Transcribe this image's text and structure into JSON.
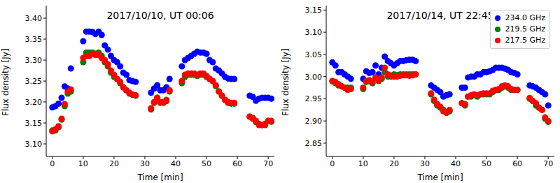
{
  "chart_data": [
    {
      "type": "scatter",
      "title": "2017/10/10, UT 00:06",
      "xlabel": "Time [min]",
      "ylabel": "Flux density [Jy]",
      "marker": "circle",
      "grid": false,
      "xlim": [
        -2,
        72
      ],
      "xticks": [
        0,
        10,
        20,
        30,
        40,
        50,
        60,
        70
      ],
      "ylim": [
        3.07,
        3.43
      ],
      "yticks": [
        {
          "value": 3.1,
          "label": "3.10"
        },
        {
          "value": 3.15,
          "label": "3.15"
        },
        {
          "value": 3.2,
          "label": "3.20"
        },
        {
          "value": 3.25,
          "label": "3.25"
        },
        {
          "value": 3.3,
          "label": "3.30"
        },
        {
          "value": 3.35,
          "label": "3.35"
        },
        {
          "value": 3.4,
          "label": "3.40"
        }
      ],
      "x": [
        0,
        1,
        2,
        3,
        4,
        5,
        6,
        10,
        11,
        12,
        13,
        14,
        15,
        16,
        17,
        18,
        19,
        20,
        21,
        22,
        23,
        24,
        25,
        26,
        27,
        32,
        33,
        34,
        35,
        36,
        37,
        38,
        42,
        43,
        44,
        45,
        46,
        47,
        48,
        49,
        50,
        51,
        52,
        53,
        54,
        55,
        56,
        57,
        58,
        59,
        64,
        65,
        66,
        67,
        68,
        69,
        70,
        71
      ],
      "series": [
        {
          "color": "#0000ff",
          "values": [
            3.187,
            3.19,
            3.196,
            3.21,
            3.237,
            3.232,
            3.28,
            3.345,
            3.368,
            3.368,
            3.367,
            3.362,
            3.368,
            3.36,
            3.335,
            3.325,
            3.31,
            3.3,
            3.295,
            3.285,
            3.27,
            3.265,
            3.252,
            3.25,
            3.248,
            3.222,
            3.232,
            3.24,
            3.228,
            3.228,
            3.235,
            3.255,
            3.285,
            3.3,
            3.305,
            3.31,
            3.315,
            3.32,
            3.318,
            3.318,
            3.315,
            3.3,
            3.295,
            3.28,
            3.275,
            3.268,
            3.26,
            3.256,
            3.255,
            3.255,
            3.215,
            3.212,
            3.203,
            3.208,
            3.21,
            3.21,
            3.21,
            3.208
          ]
        },
        {
          "color": "#008000",
          "values": [
            3.132,
            3.132,
            3.14,
            3.158,
            3.19,
            3.22,
            3.225,
            3.295,
            3.318,
            3.318,
            3.318,
            3.315,
            3.318,
            3.31,
            3.295,
            3.285,
            3.27,
            3.26,
            3.255,
            3.245,
            3.235,
            3.228,
            3.22,
            3.217,
            3.215,
            3.182,
            3.198,
            3.21,
            3.198,
            3.198,
            3.202,
            3.225,
            3.245,
            3.26,
            3.265,
            3.265,
            3.265,
            3.262,
            3.265,
            3.265,
            3.26,
            3.255,
            3.25,
            3.238,
            3.225,
            3.215,
            3.205,
            3.198,
            3.196,
            3.196,
            3.165,
            3.162,
            3.152,
            3.148,
            3.145,
            3.148,
            3.155,
            3.153
          ]
        },
        {
          "color": "#ff0000",
          "values": [
            3.13,
            3.135,
            3.142,
            3.16,
            3.195,
            3.225,
            3.23,
            3.305,
            3.31,
            3.31,
            3.315,
            3.312,
            3.312,
            3.305,
            3.3,
            3.29,
            3.275,
            3.265,
            3.255,
            3.248,
            3.235,
            3.228,
            3.222,
            3.218,
            3.216,
            3.185,
            3.2,
            3.21,
            3.2,
            3.2,
            3.205,
            3.228,
            3.25,
            3.265,
            3.268,
            3.268,
            3.268,
            3.265,
            3.268,
            3.268,
            3.262,
            3.255,
            3.25,
            3.24,
            3.225,
            3.215,
            3.205,
            3.2,
            3.198,
            3.198,
            3.165,
            3.16,
            3.155,
            3.145,
            3.145,
            3.145,
            3.155,
            3.155
          ]
        }
      ]
    },
    {
      "type": "scatter",
      "title": "2017/10/14, UT 22:45",
      "xlabel": "Time [min]",
      "ylabel": "Flux density [Jy]",
      "marker": "circle",
      "grid": false,
      "legend": "upper right",
      "xlim": [
        -2,
        72
      ],
      "xticks": [
        0,
        10,
        20,
        30,
        40,
        50,
        60,
        70
      ],
      "ylim": [
        2.82,
        3.16
      ],
      "yticks": [
        {
          "value": 2.85,
          "label": "2.85"
        },
        {
          "value": 2.9,
          "label": "2.90"
        },
        {
          "value": 2.95,
          "label": "2.95"
        },
        {
          "value": 3.0,
          "label": "3.00"
        },
        {
          "value": 3.05,
          "label": "3.05"
        },
        {
          "value": 3.1,
          "label": "3.10"
        },
        {
          "value": 3.15,
          "label": "3.15"
        }
      ],
      "x": [
        0,
        1,
        2,
        3,
        4,
        5,
        6,
        10,
        11,
        12,
        13,
        14,
        15,
        16,
        17,
        18,
        19,
        20,
        21,
        22,
        23,
        24,
        25,
        26,
        27,
        32,
        33,
        34,
        35,
        36,
        37,
        38,
        42,
        43,
        44,
        45,
        46,
        47,
        48,
        49,
        50,
        51,
        52,
        53,
        54,
        55,
        56,
        57,
        58,
        59,
        60,
        64,
        65,
        66,
        67,
        68,
        69,
        70
      ],
      "series": [
        {
          "name": "234.0 GHz",
          "color": "#0000ff",
          "values": [
            3.032,
            3.025,
            3.01,
            3.01,
            3.005,
            3.0,
            2.995,
            2.995,
            3.012,
            3.008,
            3.01,
            3.025,
            3.005,
            3.02,
            3.045,
            3.035,
            3.03,
            3.025,
            3.03,
            3.035,
            3.035,
            3.037,
            3.038,
            3.038,
            3.035,
            2.98,
            2.975,
            2.97,
            2.965,
            2.955,
            2.958,
            2.96,
            2.975,
            2.975,
            2.998,
            3.0,
            3.0,
            3.005,
            3.005,
            3.01,
            3.01,
            3.012,
            3.015,
            3.02,
            3.02,
            3.02,
            3.018,
            3.015,
            3.01,
            3.008,
            3.005,
            2.98,
            2.978,
            2.975,
            2.97,
            2.965,
            2.96,
            2.935
          ]
        },
        {
          "name": "219.5 GHz",
          "color": "#008000",
          "values": [
            2.99,
            2.985,
            2.98,
            2.978,
            2.975,
            2.975,
            2.975,
            2.972,
            2.988,
            2.99,
            2.985,
            2.998,
            2.99,
            2.995,
            3.01,
            3.0,
            3.0,
            3.005,
            3.003,
            3.005,
            3.005,
            3.005,
            3.005,
            3.005,
            3.005,
            2.96,
            2.945,
            2.935,
            2.93,
            2.925,
            2.918,
            2.922,
            2.94,
            2.935,
            2.955,
            2.955,
            2.958,
            2.955,
            2.96,
            2.96,
            2.96,
            2.96,
            2.965,
            2.97,
            2.97,
            2.975,
            2.978,
            2.975,
            2.97,
            2.97,
            2.97,
            2.95,
            2.945,
            2.935,
            2.93,
            2.925,
            2.905,
            2.898
          ]
        },
        {
          "name": "217.5 GHz",
          "color": "#ff0000",
          "values": [
            2.99,
            2.988,
            2.983,
            2.978,
            2.975,
            2.97,
            2.972,
            2.975,
            2.99,
            2.992,
            2.988,
            2.998,
            2.992,
            2.998,
            3.02,
            3.005,
            3.002,
            3.0,
            3.0,
            3.002,
            3.003,
            3.003,
            3.002,
            3.003,
            3.005,
            2.962,
            2.948,
            2.938,
            2.932,
            2.922,
            2.92,
            2.925,
            2.94,
            2.938,
            2.955,
            2.958,
            2.96,
            2.958,
            2.96,
            2.962,
            2.962,
            2.962,
            2.968,
            2.97,
            2.972,
            2.978,
            2.98,
            2.978,
            2.972,
            2.97,
            2.97,
            2.952,
            2.945,
            2.94,
            2.93,
            2.925,
            2.908,
            2.9
          ]
        }
      ]
    }
  ]
}
